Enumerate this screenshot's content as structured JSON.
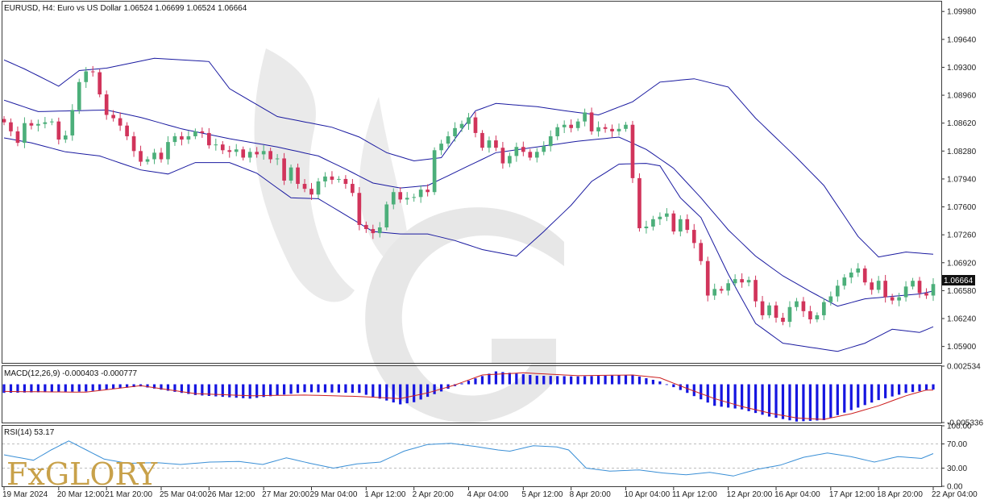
{
  "window": {
    "title_line": "EURUSD, H4:  Euro vs US Dollar  1.06524 1.06699 1.06524 1.06664",
    "current_price": "1.06664"
  },
  "indicators": {
    "macd_label": "MACD(12,26,9) -0.000403 -0.000777",
    "rsi_label": "RSI(14) 53.17"
  },
  "logo": {
    "text": "FxGLORY"
  },
  "colors": {
    "bull": "#4caf7a",
    "bear": "#d1345b",
    "band": "#1a1aa0",
    "macd_hist": "#1515e0",
    "macd_signal": "#cc1f1f",
    "rsi": "#3a8fd6",
    "grid": "#bdbdbd"
  },
  "chart_data": [
    {
      "type": "candlestick",
      "panel": "price",
      "symbol": "EURUSD",
      "timeframe": "H4",
      "ylim": [
        1.057,
        1.101
      ],
      "y_ticks": [
        "1.09980",
        "1.09640",
        "1.09300",
        "1.08960",
        "1.08620",
        "1.08280",
        "1.07940",
        "1.07600",
        "1.07260",
        "1.06920",
        "1.06580",
        "1.06240",
        "1.05900"
      ],
      "x_tick_labels": [
        "19 Mar 2024",
        "20 Mar 12:00",
        "21 Mar 20:00",
        "25 Mar 04:00",
        "26 Mar 12:00",
        "27 Mar 20:00",
        "29 Mar 04:00",
        "1 Apr 12:00",
        "2 Apr 20:00",
        "4 Apr 04:00",
        "5 Apr 12:00",
        "8 Apr 20:00",
        "10 Apr 04:00",
        "11 Apr 12:00",
        "12 Apr 20:00",
        "16 Apr 04:00",
        "17 Apr 12:00",
        "18 Apr 20:00",
        "22 Apr 04:00"
      ],
      "closes": [
        1.0863,
        1.0852,
        1.0838,
        1.0862,
        1.0859,
        1.0861,
        1.0863,
        1.0864,
        1.0842,
        1.0847,
        1.0878,
        1.0912,
        1.0925,
        1.0924,
        1.0897,
        1.0872,
        1.0868,
        1.0859,
        1.0846,
        1.0828,
        1.0815,
        1.0818,
        1.0826,
        1.0818,
        1.0839,
        1.0846,
        1.0842,
        1.0846,
        1.0852,
        1.085,
        1.0835,
        1.0836,
        1.0829,
        1.0827,
        1.083,
        1.082,
        1.0827,
        1.0824,
        1.0828,
        1.0818,
        1.0819,
        1.0792,
        1.0808,
        1.0788,
        1.0782,
        1.0775,
        1.0791,
        1.0797,
        1.0793,
        1.0794,
        1.0788,
        1.0777,
        1.0738,
        1.0733,
        1.0728,
        1.0735,
        1.0763,
        1.0778,
        1.0769,
        1.0771,
        1.0772,
        1.0781,
        1.0778,
        1.0829,
        1.0837,
        1.0846,
        1.0856,
        1.0861,
        1.0869,
        1.085,
        1.0832,
        1.0841,
        1.0832,
        1.0813,
        1.0822,
        1.0833,
        1.0827,
        1.082,
        1.0827,
        1.0834,
        1.0846,
        1.0857,
        1.086,
        1.0856,
        1.0864,
        1.0875,
        1.0852,
        1.0857,
        1.0855,
        1.0852,
        1.0855,
        1.086,
        1.0795,
        1.0734,
        1.0736,
        1.0745,
        1.0748,
        1.0752,
        1.073,
        1.0745,
        1.0732,
        1.0716,
        1.0694,
        1.0652,
        1.066,
        1.0658,
        1.0667,
        1.0672,
        1.0668,
        1.0671,
        1.0645,
        1.0628,
        1.064,
        1.0625,
        1.062,
        1.0638,
        1.0645,
        1.0633,
        1.0623,
        1.0628,
        1.0644,
        1.0651,
        1.0664,
        1.0674,
        1.068,
        1.0685,
        1.0668,
        1.0659,
        1.067,
        1.065,
        1.0646,
        1.065,
        1.0663,
        1.067,
        1.0655,
        1.0652,
        1.0666
      ],
      "bands": {
        "upper": [
          [
            0,
            1.0939
          ],
          [
            3,
            1.0928
          ],
          [
            8,
            1.0907
          ],
          [
            11,
            1.0926
          ],
          [
            15,
            1.0929
          ],
          [
            22,
            1.0941
          ],
          [
            30,
            1.0937
          ],
          [
            33,
            1.0904
          ],
          [
            40,
            1.087
          ],
          [
            48,
            1.0857
          ],
          [
            52,
            1.0845
          ],
          [
            56,
            1.0826
          ],
          [
            60,
            1.0816
          ],
          [
            64,
            1.082
          ],
          [
            69,
            1.0877
          ],
          [
            72,
            1.0886
          ],
          [
            78,
            1.0882
          ],
          [
            83,
            1.0876
          ],
          [
            87,
            1.0872
          ],
          [
            92,
            1.0888
          ],
          [
            96,
            1.0912
          ],
          [
            101,
            1.0916
          ],
          [
            106,
            1.0906
          ],
          [
            110,
            1.0868
          ],
          [
            116,
            1.082
          ],
          [
            120,
            1.0786
          ],
          [
            125,
            1.0724
          ],
          [
            128,
            1.0699
          ],
          [
            132,
            1.0705
          ],
          [
            138,
            1.0701
          ]
        ],
        "middle": [
          [
            0,
            1.089
          ],
          [
            5,
            1.0876
          ],
          [
            10,
            1.0877
          ],
          [
            15,
            1.0878
          ],
          [
            20,
            1.0869
          ],
          [
            26,
            1.0855
          ],
          [
            33,
            1.0843
          ],
          [
            40,
            1.0833
          ],
          [
            46,
            1.0822
          ],
          [
            50,
            1.0806
          ],
          [
            54,
            1.0789
          ],
          [
            58,
            1.0783
          ],
          [
            62,
            1.0786
          ],
          [
            66,
            1.0802
          ],
          [
            72,
            1.0826
          ],
          [
            78,
            1.0833
          ],
          [
            84,
            1.084
          ],
          [
            90,
            1.0845
          ],
          [
            94,
            1.083
          ],
          [
            98,
            1.0807
          ],
          [
            102,
            1.0771
          ],
          [
            106,
            1.0732
          ],
          [
            110,
            1.07
          ],
          [
            114,
            1.0676
          ],
          [
            118,
            1.0657
          ],
          [
            122,
            1.0639
          ],
          [
            126,
            1.0648
          ],
          [
            130,
            1.0651
          ],
          [
            134,
            1.0654
          ],
          [
            138,
            1.0661
          ]
        ],
        "lower": [
          [
            0,
            1.0844
          ],
          [
            4,
            1.0838
          ],
          [
            9,
            1.0827
          ],
          [
            14,
            1.0822
          ],
          [
            20,
            1.0805
          ],
          [
            24,
            1.08
          ],
          [
            28,
            1.0814
          ],
          [
            33,
            1.0814
          ],
          [
            37,
            1.0801
          ],
          [
            42,
            1.0771
          ],
          [
            46,
            1.077
          ],
          [
            50,
            1.075
          ],
          [
            54,
            1.073
          ],
          [
            58,
            1.0727
          ],
          [
            62,
            1.0727
          ],
          [
            66,
            1.0719
          ],
          [
            70,
            1.0708
          ],
          [
            75,
            1.07
          ],
          [
            79,
            1.073
          ],
          [
            83,
            1.0762
          ],
          [
            86,
            1.0791
          ],
          [
            90,
            1.0812
          ],
          [
            94,
            1.0813
          ],
          [
            96,
            1.081
          ],
          [
            99,
            1.0771
          ],
          [
            102,
            1.0747
          ],
          [
            106,
            1.0678
          ],
          [
            110,
            1.0618
          ],
          [
            114,
            1.0594
          ],
          [
            118,
            1.0589
          ],
          [
            122,
            1.0584
          ],
          [
            126,
            1.0594
          ],
          [
            130,
            1.0611
          ],
          [
            134,
            1.0607
          ],
          [
            138,
            1.0621
          ]
        ]
      }
    },
    {
      "type": "bar",
      "panel": "macd",
      "name": "MACD(12,26,9)",
      "ylim": [
        -0.005336,
        0.002534
      ],
      "y_ticks": [
        "0.002534",
        "-0.005336"
      ],
      "macd_points": [
        [
          0,
          -0.0012
        ],
        [
          12,
          -0.001
        ],
        [
          20,
          -0.0003
        ],
        [
          28,
          -0.0015
        ],
        [
          36,
          -0.002
        ],
        [
          44,
          -0.0011
        ],
        [
          52,
          -0.0012
        ],
        [
          58,
          -0.0028
        ],
        [
          60,
          -0.0025
        ],
        [
          64,
          -0.001
        ],
        [
          68,
          0.0005
        ],
        [
          72,
          0.0018
        ],
        [
          78,
          0.0012
        ],
        [
          84,
          0.0011
        ],
        [
          92,
          0.0013
        ],
        [
          96,
          0.0004
        ],
        [
          100,
          -0.0012
        ],
        [
          104,
          -0.003
        ],
        [
          108,
          -0.0035
        ],
        [
          112,
          -0.0045
        ],
        [
          116,
          -0.0052
        ],
        [
          120,
          -0.005
        ],
        [
          124,
          -0.0036
        ],
        [
          128,
          -0.0022
        ],
        [
          132,
          -0.0012
        ],
        [
          138,
          -0.0005
        ]
      ],
      "signal_points": [
        [
          0,
          -0.001
        ],
        [
          12,
          -0.0011
        ],
        [
          20,
          -0.0002
        ],
        [
          28,
          -0.0013
        ],
        [
          36,
          -0.0016
        ],
        [
          44,
          -0.0015
        ],
        [
          52,
          -0.0017
        ],
        [
          58,
          -0.002
        ],
        [
          62,
          -0.0012
        ],
        [
          66,
          -0.0001
        ],
        [
          70,
          0.0013
        ],
        [
          76,
          0.0016
        ],
        [
          84,
          0.0012
        ],
        [
          92,
          0.0013
        ],
        [
          96,
          0.0009
        ],
        [
          100,
          -0.0006
        ],
        [
          104,
          -0.002
        ],
        [
          108,
          -0.0031
        ],
        [
          112,
          -0.004
        ],
        [
          116,
          -0.0047
        ],
        [
          120,
          -0.0049
        ],
        [
          124,
          -0.0041
        ],
        [
          128,
          -0.003
        ],
        [
          132,
          -0.0016
        ],
        [
          135,
          -0.0008
        ],
        [
          138,
          -0.0008
        ]
      ]
    },
    {
      "type": "line",
      "panel": "rsi",
      "name": "RSI(14)",
      "ylim": [
        0,
        100
      ],
      "y_ticks": [
        "100.00",
        "70.00",
        "30.00",
        "0.00"
      ],
      "rsi_points": [
        [
          0,
          52
        ],
        [
          5,
          43
        ],
        [
          8,
          60
        ],
        [
          11,
          75
        ],
        [
          14,
          60
        ],
        [
          17,
          45
        ],
        [
          21,
          38
        ],
        [
          26,
          39
        ],
        [
          30,
          36
        ],
        [
          35,
          40
        ],
        [
          40,
          41
        ],
        [
          44,
          36
        ],
        [
          48,
          47
        ],
        [
          52,
          38
        ],
        [
          56,
          30
        ],
        [
          60,
          37
        ],
        [
          64,
          40
        ],
        [
          68,
          58
        ],
        [
          72,
          69
        ],
        [
          76,
          71
        ],
        [
          80,
          66
        ],
        [
          84,
          60
        ],
        [
          86,
          58
        ],
        [
          90,
          67
        ],
        [
          94,
          65
        ],
        [
          96,
          60
        ],
        [
          99,
          30
        ],
        [
          103,
          25
        ],
        [
          108,
          27
        ],
        [
          112,
          22
        ],
        [
          116,
          19
        ],
        [
          120,
          23
        ],
        [
          124,
          17
        ],
        [
          128,
          28
        ],
        [
          132,
          35
        ],
        [
          136,
          48
        ],
        [
          140,
          55
        ],
        [
          144,
          49
        ],
        [
          148,
          40
        ],
        [
          152,
          49
        ],
        [
          156,
          46
        ],
        [
          158,
          54
        ]
      ]
    }
  ]
}
